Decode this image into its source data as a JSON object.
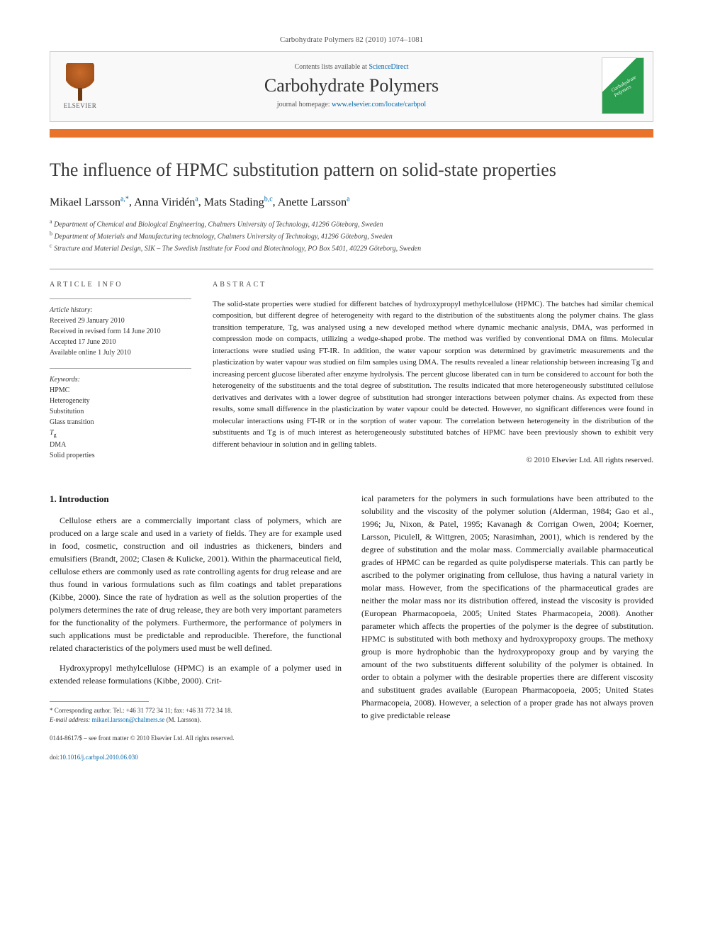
{
  "citation": "Carbohydrate Polymers 82 (2010) 1074–1081",
  "header": {
    "contents_prefix": "Contents lists available at ",
    "contents_link": "ScienceDirect",
    "journal": "Carbohydrate Polymers",
    "homepage_prefix": "journal homepage: ",
    "homepage_link": "www.elsevier.com/locate/carbpol",
    "publisher_label": "ELSEVIER",
    "cover_label": "Carbohydrate Polymers"
  },
  "title": "The influence of HPMC substitution pattern on solid-state properties",
  "authors_html": "Mikael Larsson<sup>a,*</sup>, Anna Viridén<sup>a</sup>, Mats Stading<sup>b,c</sup>, Anette Larsson<sup>a</sup>",
  "authors": [
    {
      "name": "Mikael Larsson",
      "affil": "a,*"
    },
    {
      "name": "Anna Viridén",
      "affil": "a"
    },
    {
      "name": "Mats Stading",
      "affil": "b,c"
    },
    {
      "name": "Anette Larsson",
      "affil": "a"
    }
  ],
  "affiliations": [
    {
      "sup": "a",
      "text": "Department of Chemical and Biological Engineering, Chalmers University of Technology, 41296 Göteborg, Sweden"
    },
    {
      "sup": "b",
      "text": "Department of Materials and Manufacturing technology, Chalmers University of Technology, 41296 Göteborg, Sweden"
    },
    {
      "sup": "c",
      "text": "Structure and Material Design, SIK – The Swedish Institute for Food and Biotechnology, PO Box 5401, 40229 Göteborg, Sweden"
    }
  ],
  "article_info": {
    "label": "ARTICLE INFO",
    "history_hdr": "Article history:",
    "history": [
      "Received 29 January 2010",
      "Received in revised form 14 June 2010",
      "Accepted 17 June 2010",
      "Available online 1 July 2010"
    ],
    "keywords_hdr": "Keywords:",
    "keywords": [
      "HPMC",
      "Heterogeneity",
      "Substitution",
      "Glass transition",
      "Tg",
      "DMA",
      "Solid properties"
    ]
  },
  "abstract": {
    "label": "ABSTRACT",
    "text": "The solid-state properties were studied for different batches of hydroxypropyl methylcellulose (HPMC). The batches had similar chemical composition, but different degree of heterogeneity with regard to the distribution of the substituents along the polymer chains. The glass transition temperature, Tg, was analysed using a new developed method where dynamic mechanic analysis, DMA, was performed in compression mode on compacts, utilizing a wedge-shaped probe. The method was verified by conventional DMA on films. Molecular interactions were studied using FT-IR. In addition, the water vapour sorption was determined by gravimetric measurements and the plasticization by water vapour was studied on film samples using DMA. The results revealed a linear relationship between increasing Tg and increasing percent glucose liberated after enzyme hydrolysis. The percent glucose liberated can in turn be considered to account for both the heterogeneity of the substituents and the total degree of substitution. The results indicated that more heterogeneously substituted cellulose derivatives and derivates with a lower degree of substitution had stronger interactions between polymer chains. As expected from these results, some small difference in the plasticization by water vapour could be detected. However, no significant differences were found in molecular interactions using FT-IR or in the sorption of water vapour. The correlation between heterogeneity in the distribution of the substituents and Tg is of much interest as heterogeneously substituted batches of HPMC have been previously shown to exhibit very different behaviour in solution and in gelling tablets.",
    "copyright": "© 2010 Elsevier Ltd. All rights reserved."
  },
  "intro": {
    "heading": "1. Introduction",
    "p1": "Cellulose ethers are a commercially important class of polymers, which are produced on a large scale and used in a variety of fields. They are for example used in food, cosmetic, construction and oil industries as thickeners, binders and emulsifiers (Brandt, 2002; Clasen & Kulicke, 2001). Within the pharmaceutical field, cellulose ethers are commonly used as rate controlling agents for drug release and are thus found in various formulations such as film coatings and tablet preparations (Kibbe, 2000). Since the rate of hydration as well as the solution properties of the polymers determines the rate of drug release, they are both very important parameters for the functionality of the polymers. Furthermore, the performance of polymers in such applications must be predictable and reproducible. Therefore, the functional related characteristics of the polymers used must be well defined.",
    "p2": "Hydroxypropyl methylcellulose (HPMC) is an example of a polymer used in extended release formulations (Kibbe, 2000). Crit-",
    "p3": "ical parameters for the polymers in such formulations have been attributed to the solubility and the viscosity of the polymer solution (Alderman, 1984; Gao et al., 1996; Ju, Nixon, & Patel, 1995; Kavanagh & Corrigan Owen, 2004; Koerner, Larsson, Piculell, & Wittgren, 2005; Narasimhan, 2001), which is rendered by the degree of substitution and the molar mass. Commercially available pharmaceutical grades of HPMC can be regarded as quite polydisperse materials. This can partly be ascribed to the polymer originating from cellulose, thus having a natural variety in molar mass. However, from the specifications of the pharmaceutical grades are neither the molar mass nor its distribution offered, instead the viscosity is provided (European Pharmacopoeia, 2005; United States Pharmacopeia, 2008). Another parameter which affects the properties of the polymer is the degree of substitution. HPMC is substituted with both methoxy and hydroxypropoxy groups. The methoxy group is more hydrophobic than the hydroxypropoxy group and by varying the amount of the two substituents different solubility of the polymer is obtained. In order to obtain a polymer with the desirable properties there are different viscosity and substituent grades available (European Pharmacopoeia, 2005; United States Pharmacopeia, 2008). However, a selection of a proper grade has not always proven to give predictable release"
  },
  "corresponding": {
    "line1": "* Corresponding author. Tel.: +46 31 772 34 11; fax: +46 31 772 34 18.",
    "line2_label": "E-mail address: ",
    "line2_email": "mikael.larsson@chalmers.se",
    "line2_suffix": " (M. Larsson)."
  },
  "footer": {
    "issn": "0144-8617/$ – see front matter © 2010 Elsevier Ltd. All rights reserved.",
    "doi_label": "doi:",
    "doi": "10.1016/j.carbpol.2010.06.030"
  },
  "colors": {
    "accent_orange": "#e8742c",
    "link_blue": "#0066aa",
    "rule_gray": "#999999",
    "cover_green": "#2a9d4e"
  },
  "typography": {
    "title_fontsize_pt": 20,
    "journal_fontsize_pt": 20,
    "body_fontsize_pt": 9,
    "abstract_fontsize_pt": 8.5,
    "font_family": "Georgia / serif"
  }
}
